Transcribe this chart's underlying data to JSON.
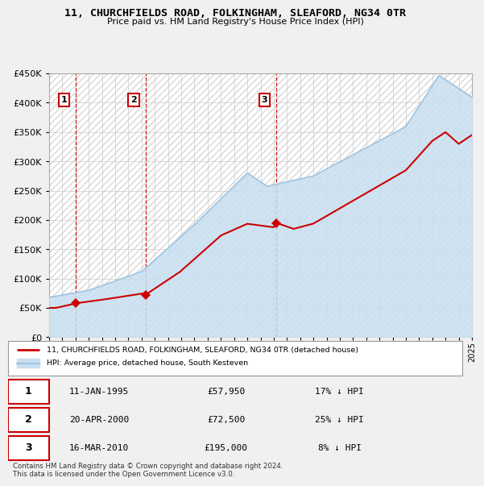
{
  "title": "11, CHURCHFIELDS ROAD, FOLKINGHAM, SLEAFORD, NG34 0TR",
  "subtitle": "Price paid vs. HM Land Registry's House Price Index (HPI)",
  "sale_year_vals": [
    1995.03,
    2000.3,
    2010.21
  ],
  "sale_prices": [
    57950,
    72500,
    195000
  ],
  "sale_labels": [
    "1",
    "2",
    "3"
  ],
  "legend_property": "11, CHURCHFIELDS ROAD, FOLKINGHAM, SLEAFORD, NG34 0TR (detached house)",
  "legend_hpi": "HPI: Average price, detached house, South Kesteven",
  "table_rows": [
    {
      "label": "1",
      "date": "11-JAN-1995",
      "price": "£57,950",
      "hpi": "17% ↓ HPI"
    },
    {
      "label": "2",
      "date": "20-APR-2000",
      "price": "£72,500",
      "hpi": "25% ↓ HPI"
    },
    {
      "label": "3",
      "date": "16-MAR-2010",
      "price": "£195,000",
      "hpi": "8% ↓ HPI"
    }
  ],
  "footnote": "Contains HM Land Registry data © Crown copyright and database right 2024.\nThis data is licensed under the Open Government Licence v3.0.",
  "property_line_color": "#cc0000",
  "hpi_line_color": "#a0c4e0",
  "hpi_fill_color": "#c8dff0",
  "sale_marker_color": "#cc0000",
  "vline_color": "#cc0000",
  "background_color": "#f0f0f0",
  "plot_bg_color": "#ffffff",
  "grid_color": "#cccccc",
  "hatch_color": "#d8d8d8",
  "ylim": [
    0,
    450000
  ],
  "xlim": [
    1993,
    2025
  ]
}
